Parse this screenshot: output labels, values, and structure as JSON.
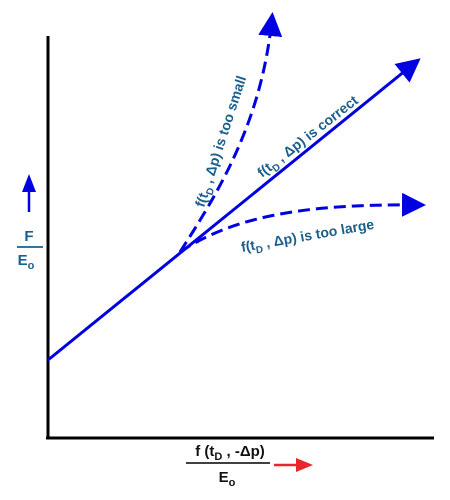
{
  "colors": {
    "line": "#0000e0",
    "text_blue": "#1b5f8c",
    "axis": "#000000",
    "arrow_red": "#e8262c"
  },
  "y_axis_label": {
    "numerator": "F",
    "denominator": "E",
    "denominator_sub": "o"
  },
  "x_axis_label": {
    "numerator_prefix": "f (t",
    "numerator_sub": "D",
    "numerator_suffix": " , -Δp)",
    "denominator": "E",
    "denominator_sub": "o"
  },
  "curves": {
    "too_small": {
      "prefix": "f(t",
      "sub": "D",
      "suffix": " , Δp) is too small"
    },
    "correct": {
      "prefix": "f(t",
      "sub": "D",
      "suffix": " , Δp) is correct"
    },
    "too_large": {
      "prefix": "f(t",
      "sub": "D",
      "suffix": " , Δp) is too large"
    }
  }
}
